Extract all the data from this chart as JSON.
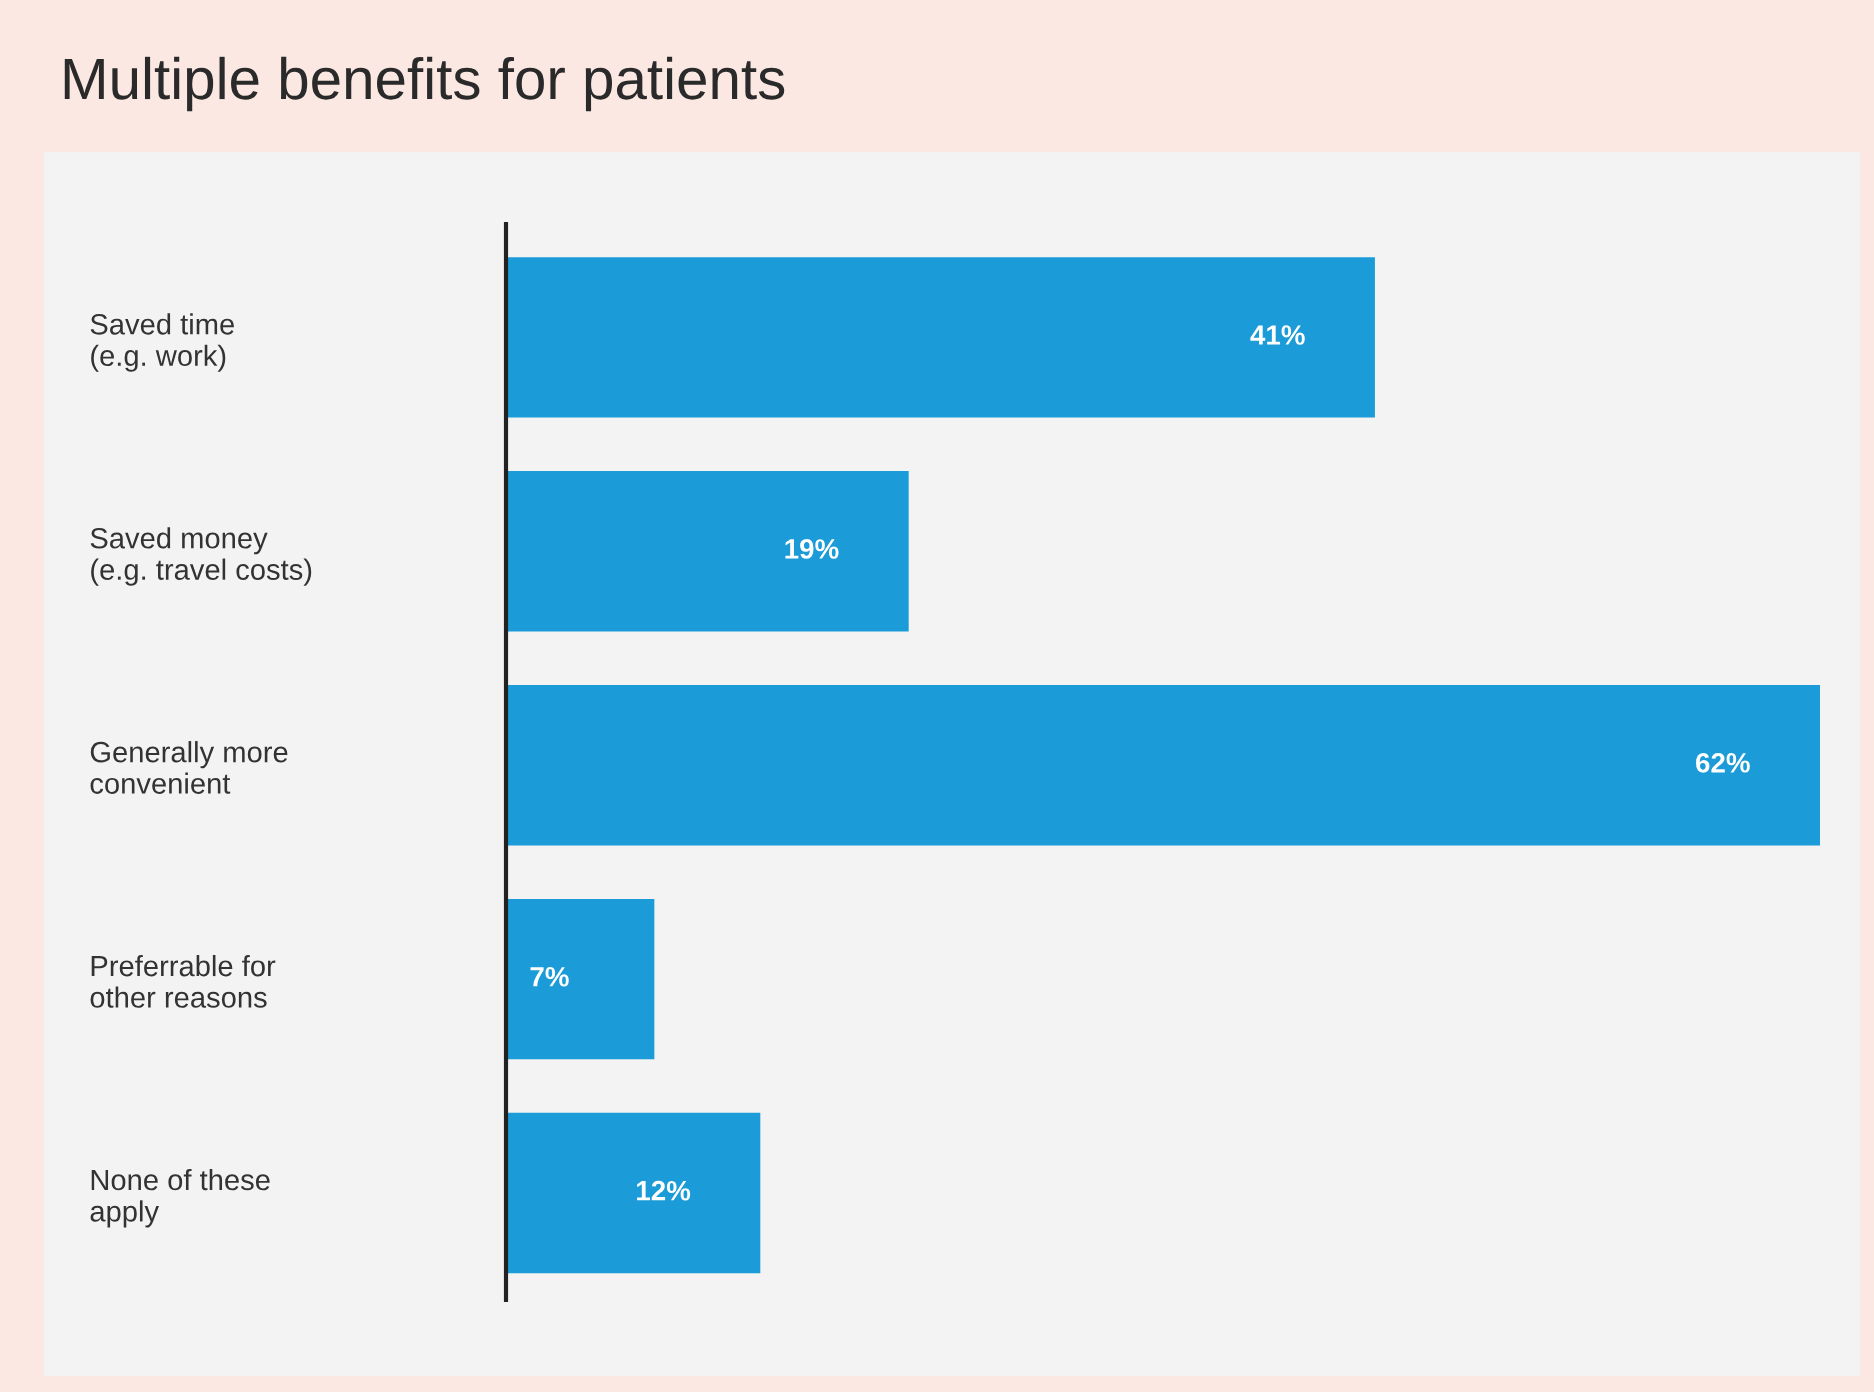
{
  "chart_data": {
    "type": "bar",
    "orientation": "horizontal",
    "title": "Multiple benefits for patients",
    "categories": [
      "Saved time\n(e.g. work)",
      "Saved money\n(e.g. travel costs)",
      "Generally more\nconvenient",
      "Preferrable for\nother reasons",
      "None of these\napply"
    ],
    "values": [
      41,
      19,
      62,
      7,
      12
    ],
    "value_labels": [
      "41%",
      "19%",
      "62%",
      "7%",
      "12%"
    ],
    "color": "#1b9bd7",
    "grid": false,
    "legend": false
  }
}
